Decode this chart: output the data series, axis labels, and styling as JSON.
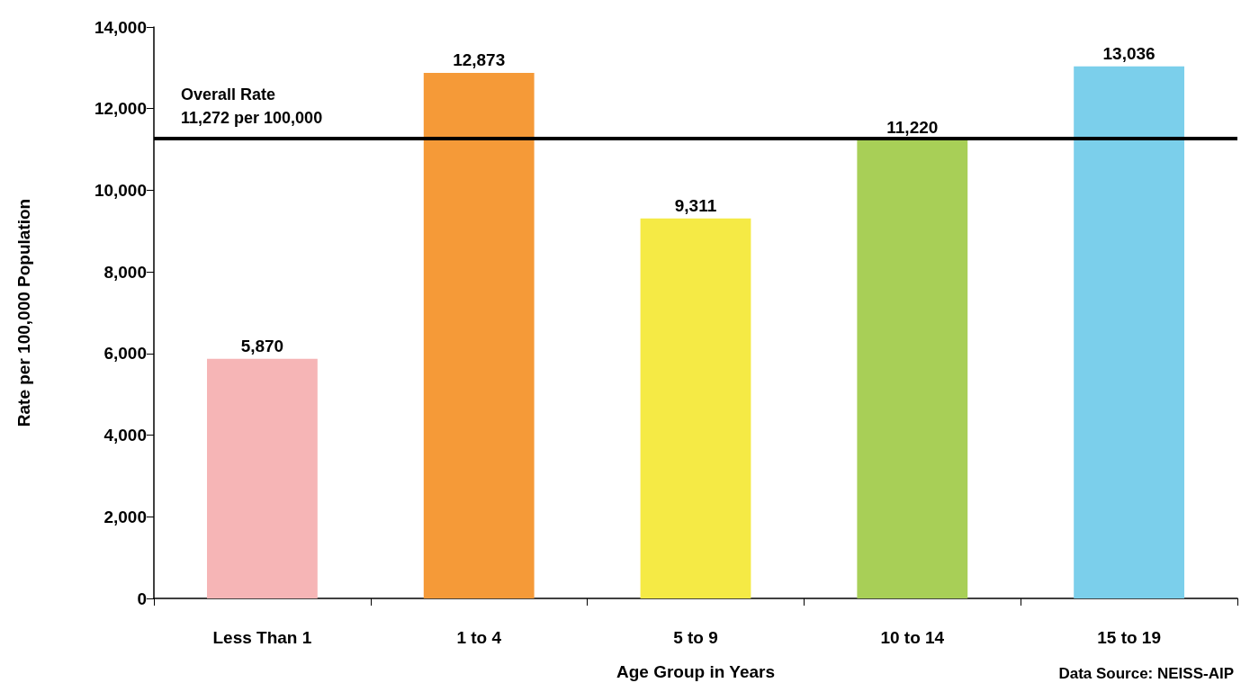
{
  "chart_data": {
    "type": "bar",
    "xlabel": "Age Group in Years",
    "ylabel": "Rate per 100,000 Population",
    "categories": [
      "Less Than 1",
      "1 to 4",
      "5 to 9",
      "10 to 14",
      "15 to 19"
    ],
    "values": [
      5870,
      12873,
      9311,
      11220,
      13036
    ],
    "value_labels": [
      "5,870",
      "12,873",
      "9,311",
      "11,220",
      "13,036"
    ],
    "colors": [
      "#f6b5b6",
      "#f59a38",
      "#f5ea45",
      "#a8cf57",
      "#7bcfeb"
    ],
    "ylim": [
      0,
      14000
    ],
    "yticks": [
      0,
      {
        "value": 2000,
        "label": "2,000"
      },
      {
        "value": 4000,
        "label": "4,000"
      },
      {
        "value": 6000,
        "label": "6,000"
      },
      {
        "value": 8000,
        "label": "8,000"
      },
      {
        "value": 10000,
        "label": "10,000"
      },
      {
        "value": 12000,
        "label": "12,000"
      },
      {
        "value": 14000,
        "label": "14,000"
      }
    ],
    "grid": false,
    "ref_lines": [
      {
        "axis": "y",
        "value": 11272,
        "label": "Overall Rate\n11,272 per 100,000",
        "color": "#000000"
      }
    ],
    "annotations": [
      "Data Source: NEISS-AIP"
    ]
  }
}
